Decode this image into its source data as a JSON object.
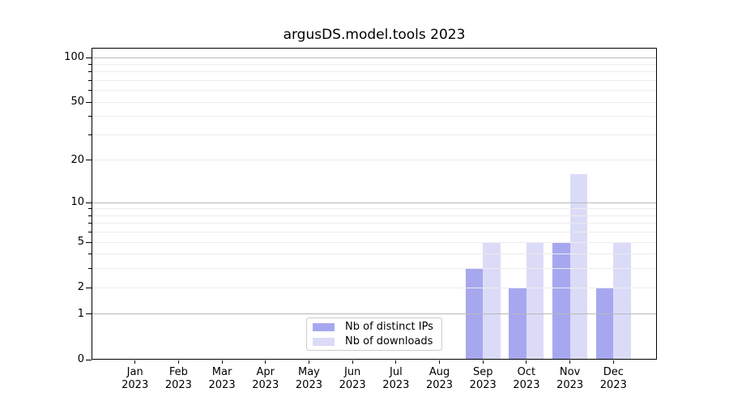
{
  "title": "argusDS.model.tools 2023",
  "legend": {
    "items": [
      {
        "label": "Nb of distinct IPs",
        "key": "distinct-ips",
        "color": "#a7a7f0"
      },
      {
        "label": "Nb of downloads",
        "key": "downloads",
        "color": "#dbdbf8"
      }
    ]
  },
  "chart_data": {
    "type": "bar",
    "title": "argusDS.model.tools 2023",
    "x_categories": [
      "Jan",
      "Feb",
      "Mar",
      "Apr",
      "May",
      "Jun",
      "Jul",
      "Aug",
      "Sep",
      "Oct",
      "Nov",
      "Dec"
    ],
    "x_year": "2023",
    "series": [
      {
        "name": "Nb of distinct IPs",
        "key": "distinct-ips",
        "color": "#a7a7f0",
        "values": [
          0,
          0,
          0,
          0,
          0,
          0,
          0,
          0,
          3,
          2,
          5,
          2
        ]
      },
      {
        "name": "Nb of downloads",
        "key": "downloads",
        "color": "#dbdbf8",
        "values": [
          0,
          0,
          0,
          0,
          0,
          0,
          0,
          0,
          5,
          5,
          16,
          5
        ]
      }
    ],
    "y_axis": {
      "scale": "log1p",
      "ticks": [
        0,
        1,
        2,
        5,
        10,
        20,
        50,
        100
      ],
      "tick_labels": [
        "0",
        "1",
        "2",
        "5",
        "10",
        "20",
        "50",
        "100"
      ],
      "major_gridlines": [
        1,
        10,
        100
      ],
      "minor_gridlines": [
        2,
        3,
        4,
        5,
        6,
        7,
        8,
        9,
        20,
        30,
        40,
        50,
        60,
        70,
        80,
        90
      ],
      "minor_tickmarks": [
        3,
        4,
        6,
        7,
        8,
        9,
        30,
        40,
        60,
        70,
        80,
        90
      ],
      "max_value": 116.2,
      "ylim": [
        0,
        116.2
      ]
    },
    "grid": true,
    "grid_above_bars": true,
    "legend_position": "lower center",
    "colors": {
      "major_grid": "#b9b9b9",
      "minor_grid": "#ececec",
      "spine": "#000000",
      "text": "#000000",
      "legend_border": "#cccccc"
    }
  }
}
